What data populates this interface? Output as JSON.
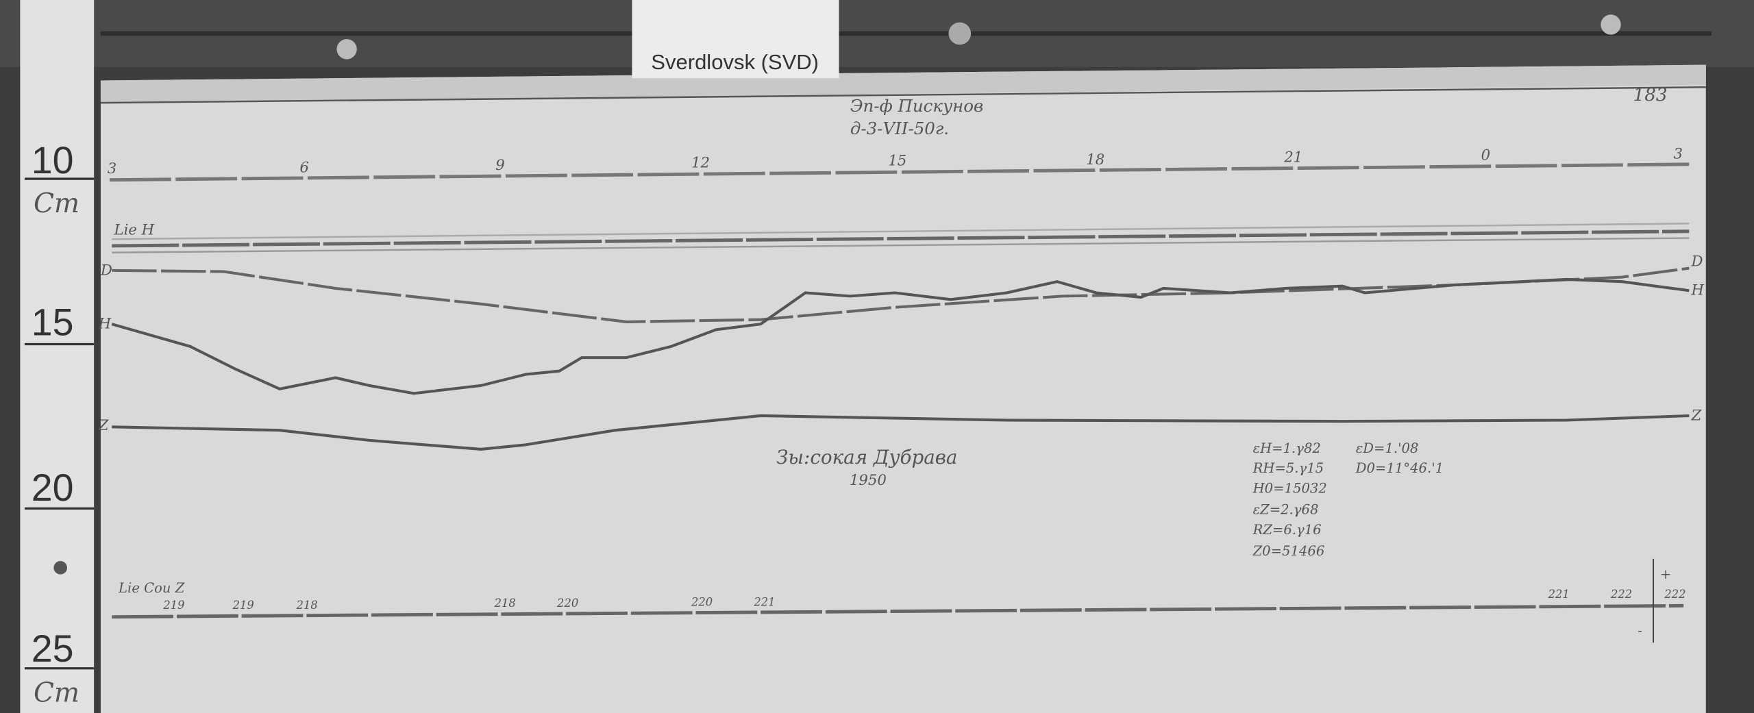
{
  "label_card": "Sverdlovsk (SVD)",
  "ruler": {
    "marks": [
      "10",
      "15",
      "20",
      "25"
    ],
    "unit": "Cm"
  },
  "magnetogram": {
    "header_line1": "Эп-ф Пискунов",
    "header_line2": "д-3-VII-50г.",
    "sheet_number": "183",
    "hour_ticks": [
      "3",
      "6",
      "9",
      "12",
      "15",
      "18",
      "21",
      "0",
      "3"
    ],
    "baseline_label": "Lie H",
    "trace_labels": {
      "d": "D",
      "h": "H",
      "z": "Z"
    },
    "station_name": "Зы:сокая Дубрава",
    "year": "1950",
    "constants_left": [
      "εH=1.γ82",
      "RH=5.γ15",
      "H0=15032",
      "εZ=2.γ68",
      "RZ=6.γ16",
      "Z0=51466"
    ],
    "constants_right": [
      "εD=1.'08",
      "D0=11°46.'1"
    ],
    "bottom_label": "Lie Cou Z",
    "bottom_numbers": [
      "219",
      "219",
      "218",
      "218",
      "220",
      "220",
      "221",
      "221",
      "222",
      "222"
    ],
    "scale_signs": [
      "+",
      "-"
    ]
  }
}
